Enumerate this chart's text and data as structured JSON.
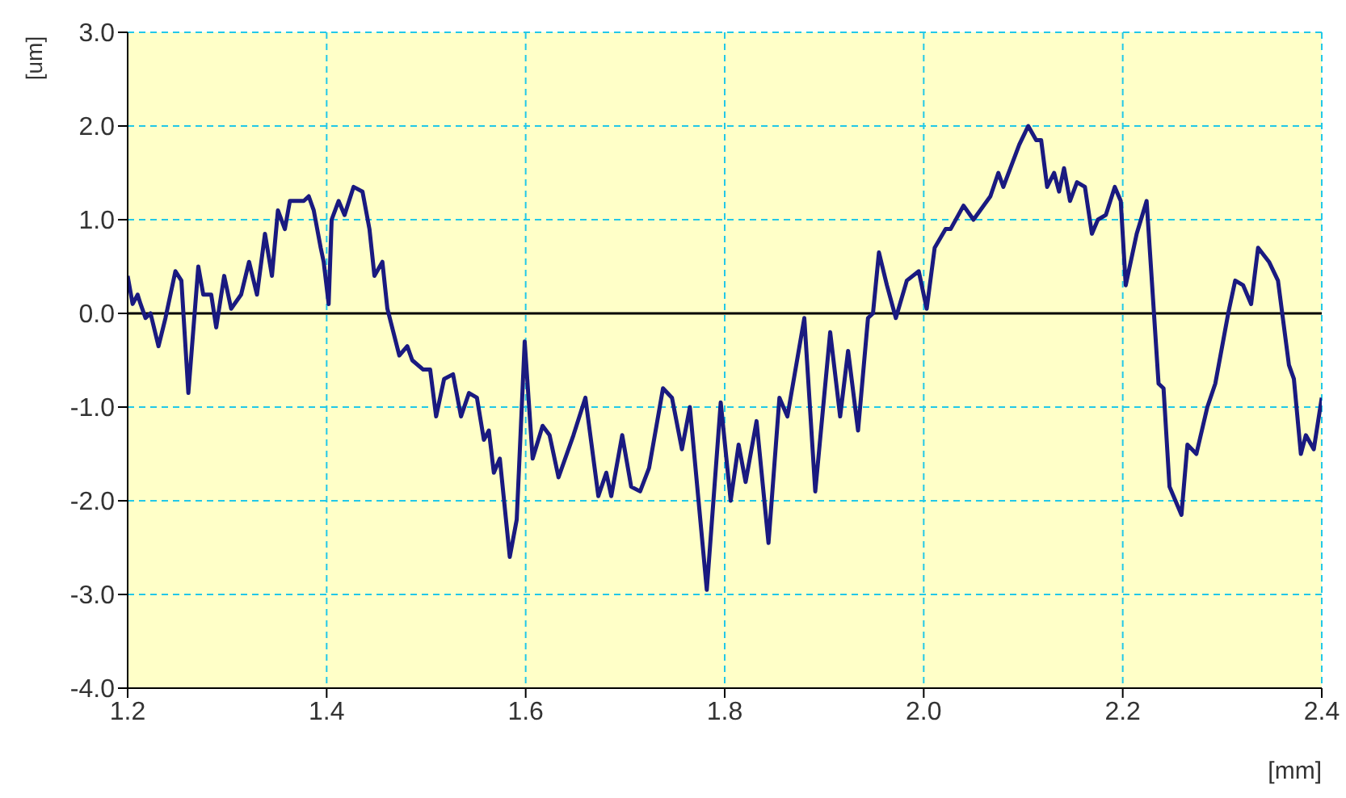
{
  "chart_data": {
    "type": "line",
    "xlabel": "[mm]",
    "ylabel": "[um]",
    "xlim": [
      1.2,
      2.4
    ],
    "xticks": [
      1.2,
      1.4,
      1.6,
      1.8,
      {
        "value": 2.0,
        "label": "2.0"
      },
      2.2,
      2.4
    ],
    "ylim": [
      -4,
      3
    ],
    "yticks": [
      {
        "value": -4,
        "label": "-4.0"
      },
      {
        "value": -3,
        "label": "-3.0"
      },
      {
        "value": -2,
        "label": "-2.0"
      },
      {
        "value": -1,
        "label": "-1.0"
      },
      {
        "value": 0,
        "label": "0.0"
      },
      {
        "value": 1,
        "label": "1.0"
      },
      {
        "value": 2,
        "label": "2.0"
      },
      {
        "value": 3,
        "label": "3.0"
      }
    ],
    "grid": true,
    "marker": "none",
    "line_style": "solid",
    "legend": false,
    "ref_lines": [
      {
        "axis": "y",
        "value": 0,
        "color": "#000000"
      }
    ],
    "x": [
      1.2,
      1.205,
      1.21,
      1.213,
      1.218,
      1.223,
      1.231,
      1.238,
      1.248,
      1.254,
      1.261,
      1.271,
      1.276,
      1.284,
      1.289,
      1.297,
      1.304,
      1.314,
      1.322,
      1.33,
      1.338,
      1.345,
      1.351,
      1.358,
      1.363,
      1.377,
      1.382,
      1.387,
      1.394,
      1.397,
      1.402,
      1.405,
      1.412,
      1.418,
      1.427,
      1.436,
      1.443,
      1.448,
      1.456,
      1.461,
      1.473,
      1.481,
      1.486,
      1.497,
      1.504,
      1.51,
      1.518,
      1.527,
      1.535,
      1.543,
      1.551,
      1.558,
      1.563,
      1.568,
      1.574,
      1.584,
      1.591,
      1.599,
      1.607,
      1.617,
      1.624,
      1.633,
      1.648,
      1.66,
      1.673,
      1.681,
      1.686,
      1.697,
      1.706,
      1.715,
      1.724,
      1.738,
      1.747,
      1.757,
      1.765,
      1.782,
      1.796,
      1.806,
      1.814,
      1.821,
      1.832,
      1.844,
      1.855,
      1.863,
      1.88,
      1.891,
      1.906,
      1.916,
      1.924,
      1.934,
      1.944,
      1.949,
      1.955,
      1.963,
      1.972,
      1.983,
      1.995,
      2.003,
      2.011,
      2.022,
      2.027,
      2.04,
      2.05,
      2.067,
      2.075,
      2.08,
      2.096,
      2.105,
      2.113,
      2.118,
      2.124,
      2.131,
      2.136,
      2.141,
      2.147,
      2.154,
      2.162,
      2.169,
      2.175,
      2.183,
      2.192,
      2.198,
      2.203,
      2.214,
      2.224,
      2.236,
      2.241,
      2.247,
      2.259,
      2.265,
      2.274,
      2.285,
      2.293,
      2.306,
      2.313,
      2.321,
      2.329,
      2.336,
      2.347,
      2.356,
      2.367,
      2.372,
      2.379,
      2.384,
      2.392,
      2.4
    ],
    "series": [
      {
        "color": "#1a1a80",
        "values": [
          0.4,
          0.1,
          0.2,
          0.1,
          -0.05,
          0.0,
          -0.35,
          -0.05,
          0.45,
          0.35,
          -0.85,
          0.5,
          0.2,
          0.2,
          -0.15,
          0.4,
          0.05,
          0.2,
          0.55,
          0.2,
          0.85,
          0.4,
          1.1,
          0.9,
          1.2,
          1.2,
          1.25,
          1.1,
          0.7,
          0.55,
          0.1,
          1.0,
          1.2,
          1.05,
          1.35,
          1.3,
          0.9,
          0.4,
          0.55,
          0.05,
          -0.45,
          -0.35,
          -0.5,
          -0.6,
          -0.6,
          -1.1,
          -0.7,
          -0.65,
          -1.1,
          -0.85,
          -0.9,
          -1.35,
          -1.25,
          -1.7,
          -1.55,
          -2.6,
          -2.2,
          -0.3,
          -1.55,
          -1.2,
          -1.3,
          -1.75,
          -1.3,
          -0.9,
          -1.95,
          -1.7,
          -1.95,
          -1.3,
          -1.85,
          -1.9,
          -1.65,
          -0.8,
          -0.9,
          -1.45,
          -1.0,
          -2.95,
          -0.95,
          -2.0,
          -1.4,
          -1.8,
          -1.15,
          -2.45,
          -0.9,
          -1.1,
          -0.05,
          -1.9,
          -0.2,
          -1.1,
          -0.4,
          -1.25,
          -0.05,
          0.0,
          0.65,
          0.3,
          -0.05,
          0.35,
          0.45,
          0.05,
          0.7,
          0.9,
          0.9,
          1.15,
          1.0,
          1.25,
          1.5,
          1.35,
          1.8,
          2.0,
          1.85,
          1.85,
          1.35,
          1.5,
          1.3,
          1.55,
          1.2,
          1.4,
          1.35,
          0.85,
          1.0,
          1.05,
          1.35,
          1.2,
          0.3,
          0.85,
          1.2,
          -0.75,
          -0.8,
          -1.85,
          -2.15,
          -1.4,
          -1.5,
          -1.0,
          -0.75,
          0.0,
          0.35,
          0.3,
          0.1,
          0.7,
          0.55,
          0.35,
          -0.55,
          -0.7,
          -1.5,
          -1.3,
          -1.45,
          -0.9
        ]
      }
    ]
  }
}
